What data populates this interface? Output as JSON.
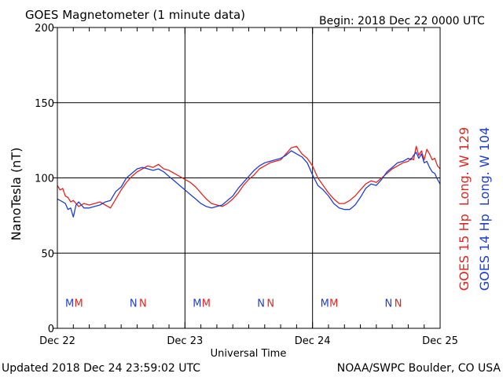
{
  "header": {
    "title": "GOES Magnetometer (1 minute data)",
    "begin": "Begin:  2018 Dec 22 0000 UTC"
  },
  "footer": {
    "updated": "Updated 2018 Dec 24 23:59:02 UTC",
    "credit": "NOAA/SWPC Boulder, CO USA"
  },
  "colors": {
    "goes15": "#e8231e",
    "goes14": "#1f3ed6",
    "axis": "#000000"
  },
  "chart_data": {
    "type": "line",
    "xlabel": "Universal Time",
    "ylabel": "NanoTesla (nT)",
    "xlim": [
      0,
      72
    ],
    "x_unit": "hours since 2018 Dec 22 0000 UTC",
    "ylim": [
      0,
      200
    ],
    "yticks": [
      0,
      50,
      100,
      150,
      200
    ],
    "xticks": [
      {
        "x": 0,
        "label": "Dec 22"
      },
      {
        "x": 24,
        "label": "Dec 23"
      },
      {
        "x": 48,
        "label": "Dec 24"
      },
      {
        "x": 72,
        "label": "Dec 25"
      }
    ],
    "grid": true,
    "series": [
      {
        "name": "GOES 15 Hp  Long. W 129",
        "color": "#e8231e",
        "x": [
          0,
          0.5,
          1,
          1.5,
          2,
          2.5,
          3,
          3.5,
          4,
          5,
          6,
          7,
          8,
          9,
          10,
          11,
          12,
          13,
          14,
          15,
          16,
          17,
          18,
          19,
          20,
          21,
          22,
          23,
          24,
          25,
          26,
          27,
          28,
          29,
          30,
          31,
          32,
          33,
          34,
          35,
          36,
          37,
          38,
          39,
          40,
          41,
          42,
          43,
          44,
          45,
          46,
          47,
          48,
          49,
          50,
          51,
          52,
          53,
          54,
          55,
          56,
          57,
          58,
          59,
          60,
          61,
          62,
          63,
          64,
          65,
          66,
          66.5,
          67,
          67.5,
          68,
          68.5,
          69,
          69.5,
          70,
          70.5,
          71,
          71.5,
          72
        ],
        "y": [
          95,
          92,
          93,
          88,
          87,
          84,
          85,
          83,
          81,
          83,
          82,
          83,
          84,
          82,
          80,
          86,
          92,
          97,
          101,
          104,
          106,
          108,
          107,
          109,
          106,
          105,
          103,
          101,
          99,
          97,
          94,
          90,
          86,
          83,
          82,
          81,
          83,
          86,
          90,
          95,
          99,
          102,
          106,
          108,
          110,
          111,
          112,
          116,
          120,
          121,
          116,
          113,
          108,
          100,
          95,
          90,
          86,
          83,
          83,
          85,
          88,
          92,
          96,
          98,
          97,
          100,
          103,
          106,
          108,
          110,
          111,
          113,
          112,
          121,
          115,
          118,
          112,
          119,
          116,
          112,
          113,
          108,
          106
        ]
      },
      {
        "name": "GOES 14 Hp  Long. W 104",
        "color": "#1f3ed6",
        "x": [
          0,
          0.5,
          1,
          1.5,
          2,
          2.5,
          3,
          3.5,
          4,
          5,
          6,
          7,
          8,
          9,
          10,
          11,
          12,
          13,
          14,
          15,
          16,
          17,
          18,
          19,
          20,
          21,
          22,
          23,
          24,
          25,
          26,
          27,
          28,
          29,
          30,
          31,
          32,
          33,
          34,
          35,
          36,
          37,
          38,
          39,
          40,
          41,
          42,
          43,
          44,
          45,
          46,
          47,
          48,
          49,
          50,
          51,
          52,
          53,
          54,
          55,
          56,
          57,
          58,
          59,
          60,
          61,
          62,
          63,
          64,
          65,
          66,
          66.5,
          67,
          67.5,
          68,
          68.5,
          69,
          69.5,
          70,
          70.5,
          71,
          71.5,
          72
        ],
        "y": [
          86,
          85,
          84,
          83,
          79,
          80,
          74,
          82,
          84,
          80,
          80,
          81,
          82,
          84,
          85,
          91,
          94,
          100,
          103,
          106,
          107,
          106,
          105,
          106,
          104,
          101,
          98,
          95,
          92,
          89,
          86,
          83,
          81,
          80,
          81,
          82,
          85,
          88,
          93,
          97,
          101,
          105,
          108,
          110,
          111,
          112,
          113,
          115,
          118,
          116,
          114,
          110,
          102,
          95,
          92,
          88,
          83,
          80,
          79,
          79,
          82,
          87,
          93,
          96,
          95,
          99,
          104,
          107,
          110,
          111,
          113,
          112,
          115,
          117,
          113,
          116,
          110,
          111,
          107,
          104,
          103,
          99,
          96
        ]
      }
    ],
    "annotations": [
      {
        "x": 2.3,
        "text": "M",
        "color": "#1f3ed6"
      },
      {
        "x": 4.0,
        "text": "M",
        "color": "#e8231e"
      },
      {
        "x": 14.3,
        "text": "N",
        "color": "#1f3ed6"
      },
      {
        "x": 16.1,
        "text": "N",
        "color": "#e8231e"
      },
      {
        "x": 26.3,
        "text": "M",
        "color": "#1f3ed6"
      },
      {
        "x": 28.0,
        "text": "M",
        "color": "#e8231e"
      },
      {
        "x": 38.3,
        "text": "N",
        "color": "#1f3ed6"
      },
      {
        "x": 40.1,
        "text": "N",
        "color": "#e8231e"
      },
      {
        "x": 50.3,
        "text": "M",
        "color": "#1f3ed6"
      },
      {
        "x": 52.0,
        "text": "M",
        "color": "#e8231e"
      },
      {
        "x": 62.3,
        "text": "N",
        "color": "#1f3ed6"
      },
      {
        "x": 64.1,
        "text": "N",
        "color": "#e8231e"
      }
    ],
    "annotation_y": 17
  }
}
